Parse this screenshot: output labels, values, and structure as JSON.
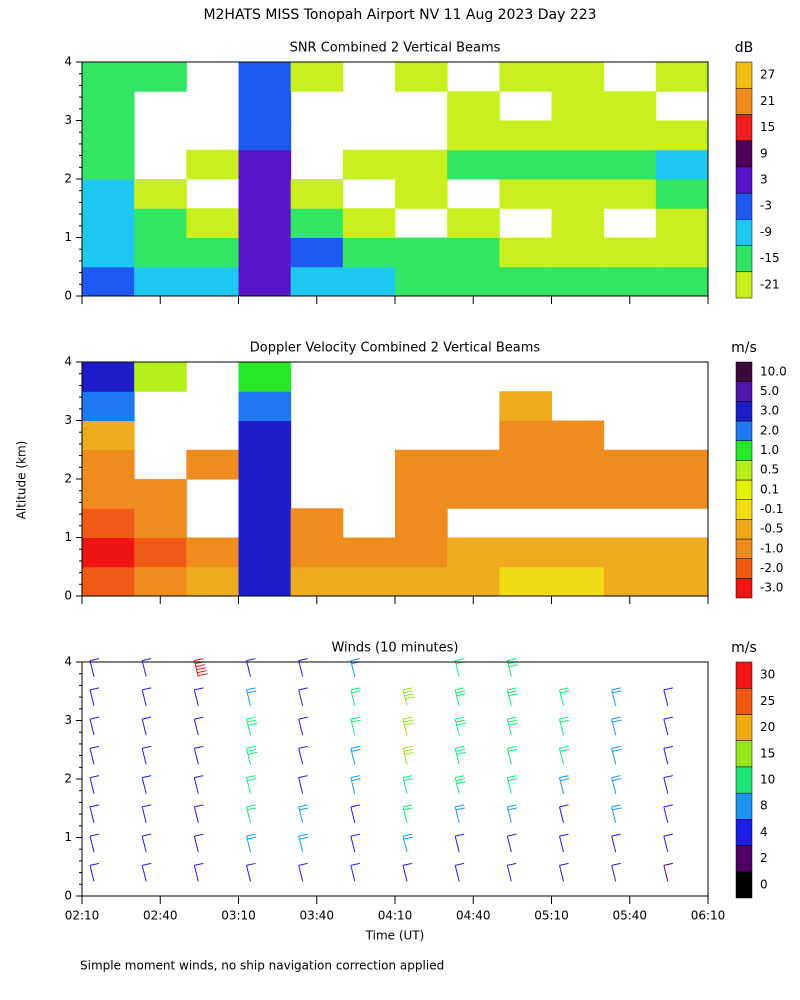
{
  "title": "M2HATS MISS Tonopah Airport NV  11 Aug 2023 Day 223",
  "y_label": "Altitude (km)",
  "footnote": "Simple moment winds, no ship navigation correction applied",
  "chart_data": [
    {
      "type": "heatmap",
      "title": "SNR Combined 2 Vertical Beams",
      "xlim": [
        "02:10",
        "06:10"
      ],
      "xticks": [
        "02:10",
        "02:40",
        "03:10",
        "03:40",
        "04:10",
        "04:40",
        "05:10",
        "05:40",
        "06:10"
      ],
      "ylim": [
        0,
        4
      ],
      "yticks": [
        0,
        1,
        2,
        3,
        4
      ],
      "xbins": [
        "02:10",
        "02:30",
        "02:50",
        "03:10",
        "03:30",
        "03:50",
        "04:10",
        "04:30",
        "04:50",
        "05:10",
        "05:30",
        "05:50",
        "06:10"
      ],
      "ybins": [
        0,
        0.5,
        1,
        1.5,
        2,
        2.5,
        3,
        3.5,
        4
      ],
      "z": [
        [
          -3,
          -9,
          -9,
          3,
          -9,
          -9,
          -12,
          -12,
          -12,
          -12,
          -15,
          -15
        ],
        [
          -6,
          -12,
          -15,
          3,
          -3,
          -12,
          -15,
          -15,
          -18,
          -18,
          -18,
          -18
        ],
        [
          -9,
          -15,
          -18,
          3,
          -15,
          -18,
          null,
          -18,
          null,
          -21,
          null,
          -21
        ],
        [
          -9,
          -18,
          null,
          3,
          -18,
          null,
          -21,
          null,
          -21,
          -18,
          -18,
          -15
        ],
        [
          -12,
          null,
          -18,
          3,
          null,
          -18,
          -18,
          -15,
          -15,
          -15,
          -12,
          -9
        ],
        [
          -12,
          null,
          null,
          0,
          null,
          null,
          null,
          -21,
          -18,
          -18,
          -18,
          -18
        ],
        [
          -15,
          null,
          null,
          -3,
          null,
          null,
          null,
          -21,
          null,
          -21,
          -21,
          null
        ],
        [
          -12,
          -15,
          null,
          -3,
          -18,
          null,
          -21,
          null,
          -21,
          -21,
          null,
          -21
        ]
      ],
      "colorbar": {
        "label": "dB",
        "levels": [
          -21,
          -15,
          -9,
          -3,
          3,
          9,
          15,
          21,
          27
        ],
        "colors": [
          "#c8f01e",
          "#32e664",
          "#1ec8f0",
          "#1e5af0",
          "#5a14c8",
          "#50005a",
          "#f01e1e",
          "#f08c1e",
          "#f0be14"
        ]
      }
    },
    {
      "type": "heatmap",
      "title": "Doppler Velocity Combined 2 Vertical Beams",
      "xlim": [
        "02:10",
        "06:10"
      ],
      "xticks": [
        "02:10",
        "02:40",
        "03:10",
        "03:40",
        "04:10",
        "04:40",
        "05:10",
        "05:40",
        "06:10"
      ],
      "ylim": [
        0,
        4
      ],
      "yticks": [
        0,
        1,
        2,
        3,
        4
      ],
      "xbins": [
        "02:10",
        "02:30",
        "02:50",
        "03:10",
        "03:30",
        "03:50",
        "04:10",
        "04:30",
        "04:50",
        "05:10",
        "05:30",
        "05:50",
        "06:10"
      ],
      "ybins": [
        0,
        0.5,
        1,
        1.5,
        2,
        2.5,
        3,
        3.5,
        4
      ],
      "z": [
        [
          -2,
          -1,
          -0.5,
          3,
          -0.3,
          -0.3,
          -0.3,
          -0.3,
          0,
          0,
          -0.3,
          -0.3
        ],
        [
          -2.5,
          -1.5,
          -0.7,
          3,
          -0.7,
          -0.7,
          -0.7,
          -0.3,
          -0.3,
          -0.3,
          -0.3,
          -0.3
        ],
        [
          -1.5,
          -0.7,
          null,
          3,
          -0.7,
          null,
          -0.7,
          null,
          null,
          null,
          null,
          null
        ],
        [
          -0.7,
          -0.7,
          null,
          3,
          null,
          null,
          -0.7,
          -0.7,
          -0.7,
          -0.7,
          -0.7,
          -0.7
        ],
        [
          -0.7,
          null,
          -0.7,
          3,
          null,
          null,
          -0.7,
          -0.7,
          -0.7,
          -0.7,
          -0.7,
          -0.7
        ],
        [
          -0.3,
          null,
          null,
          3,
          null,
          null,
          null,
          null,
          -0.7,
          -0.7,
          null,
          null
        ],
        [
          2,
          null,
          null,
          2,
          null,
          null,
          null,
          null,
          -0.3,
          null,
          null,
          null
        ],
        [
          3,
          0.5,
          null,
          1,
          null,
          null,
          null,
          null,
          null,
          null,
          null,
          null
        ]
      ],
      "colorbar": {
        "label": "m/s",
        "levels": [
          {
            "value": -3,
            "label": "-3.0"
          },
          {
            "value": -2,
            "label": "-2.0"
          },
          {
            "value": -1,
            "label": "-1.0"
          },
          -0.5,
          -0.1,
          0.1,
          0.5,
          {
            "value": 1,
            "label": "1.0"
          },
          {
            "value": 2,
            "label": "2.0"
          },
          {
            "value": 3,
            "label": "3.0"
          },
          {
            "value": 5,
            "label": "5.0"
          },
          {
            "value": 10,
            "label": "10.0"
          }
        ],
        "colors": [
          "#f01414",
          "#f05a14",
          "#f08c1e",
          "#f0aa1e",
          "#f0dc14",
          "#e6f000",
          "#b4f01e",
          "#28e628",
          "#1e78f0",
          "#1e1ec8",
          "#5014aa",
          "#3c0a3c"
        ]
      }
    },
    {
      "type": "barbs",
      "title": "Winds (10 minutes)",
      "x_label": "Time (UT)",
      "xlim": [
        "02:10",
        "06:10"
      ],
      "xticks": [
        "02:10",
        "02:40",
        "03:10",
        "03:40",
        "04:10",
        "04:40",
        "05:10",
        "05:40",
        "06:10"
      ],
      "ylim": [
        0,
        4
      ],
      "yticks": [
        0,
        1,
        2,
        3,
        4
      ],
      "xbins": [
        "02:10",
        "02:30",
        "02:50",
        "03:10",
        "03:30",
        "03:50",
        "04:10",
        "04:30",
        "04:50",
        "05:10",
        "05:30",
        "05:50",
        "06:10"
      ],
      "ybins": [
        0,
        0.5,
        1,
        1.5,
        2,
        2.5,
        3,
        3.5,
        4
      ],
      "z": [
        [
          5,
          4,
          5,
          6,
          7,
          5,
          5,
          5,
          4,
          4,
          4,
          3
        ],
        [
          4,
          5,
          5,
          8,
          8,
          6,
          8,
          6,
          6,
          5,
          5,
          6
        ],
        [
          5,
          5,
          4,
          10,
          8,
          7,
          10,
          9,
          9,
          6,
          8,
          6
        ],
        [
          4,
          4,
          5,
          12,
          6,
          8,
          10,
          14,
          10,
          8,
          8,
          6
        ],
        [
          4,
          5,
          6,
          14,
          6,
          8,
          15,
          14,
          12,
          10,
          8,
          6
        ],
        [
          5,
          5,
          6,
          14,
          6,
          10,
          16,
          14,
          14,
          12,
          8,
          5
        ],
        [
          5,
          4,
          4,
          8,
          6,
          12,
          18,
          14,
          14,
          10,
          8,
          6
        ],
        [
          6,
          4,
          30,
          4,
          6,
          8,
          null,
          12,
          14,
          null,
          null,
          null
        ]
      ],
      "colorbar": {
        "label": "m/s",
        "levels": [
          0,
          2,
          4,
          8,
          10,
          15,
          20,
          25,
          30
        ],
        "colors": [
          "#000000",
          "#500064",
          "#1e1ee6",
          "#1e96f0",
          "#1ee678",
          "#96e61e",
          "#f0aa14",
          "#f05a14",
          "#f01414"
        ]
      }
    }
  ]
}
